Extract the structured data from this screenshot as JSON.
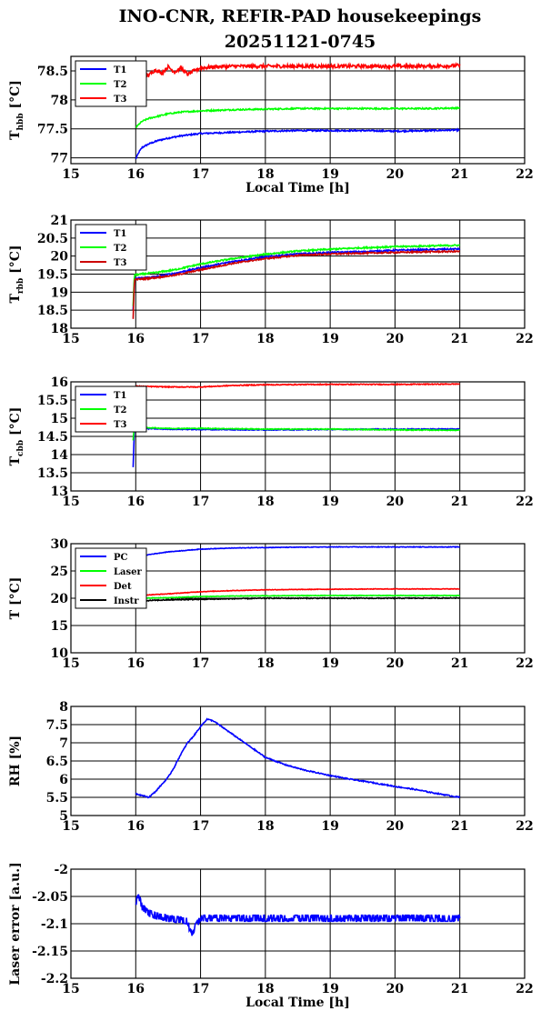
{
  "title": {
    "line1": "INO-CNR, REFIR-PAD housekeepings",
    "line2": "20251121-0745"
  },
  "chart_data": [
    {
      "type": "line",
      "title": "",
      "ylabel": {
        "main": "T",
        "sub": "hbb",
        "unit": " [°C]"
      },
      "xlabel": "Local Time [h]",
      "xlim": [
        15,
        22
      ],
      "ylim": [
        76.9,
        78.75
      ],
      "xticks": [
        "15",
        "16",
        "17",
        "18",
        "19",
        "20",
        "21",
        "22"
      ],
      "yticks": [
        {
          "v": 77,
          "t": "77"
        },
        {
          "v": 77.5,
          "t": "77.5"
        },
        {
          "v": 78,
          "t": "78"
        },
        {
          "v": 78.5,
          "t": "78.5"
        }
      ],
      "grid": true,
      "legend_position": "top-left",
      "series": [
        {
          "name": "T1",
          "color": "#0000ff",
          "x": [
            16.0,
            16.05,
            16.1,
            16.2,
            16.35,
            16.5,
            16.7,
            17.0,
            17.5,
            18.0,
            18.5,
            19.0,
            19.5,
            20.0,
            20.5,
            21.0
          ],
          "values": [
            76.98,
            77.1,
            77.18,
            77.24,
            77.3,
            77.34,
            77.38,
            77.42,
            77.44,
            77.46,
            77.47,
            77.47,
            77.47,
            77.46,
            77.47,
            77.48
          ]
        },
        {
          "name": "T2",
          "color": "#00ff00",
          "x": [
            16.0,
            16.05,
            16.1,
            16.2,
            16.35,
            16.5,
            16.7,
            17.0,
            17.5,
            18.0,
            18.5,
            19.0,
            19.5,
            20.0,
            20.5,
            21.0
          ],
          "values": [
            77.52,
            77.58,
            77.63,
            77.68,
            77.72,
            77.76,
            77.79,
            77.81,
            77.83,
            77.84,
            77.85,
            77.85,
            77.85,
            77.85,
            77.85,
            77.86
          ]
        },
        {
          "name": "T3",
          "color": "#ff0000",
          "x": [
            16.0,
            16.1,
            16.2,
            16.3,
            16.4,
            16.5,
            16.6,
            16.7,
            16.8,
            16.9,
            17.0,
            17.2,
            17.5,
            18.0,
            18.5,
            19.0,
            19.5,
            20.0,
            20.5,
            21.0
          ],
          "values": [
            78.45,
            78.5,
            78.42,
            78.52,
            78.46,
            78.57,
            78.48,
            78.55,
            78.44,
            78.5,
            78.55,
            78.57,
            78.58,
            78.58,
            78.58,
            78.58,
            78.58,
            78.58,
            78.58,
            78.59
          ]
        }
      ],
      "noise": [
        0.012,
        0.012,
        0.03
      ]
    },
    {
      "type": "line",
      "title": "",
      "ylabel": {
        "main": "T",
        "sub": "rbb",
        "unit": " [°C]"
      },
      "xlabel": "",
      "xlim": [
        15,
        22
      ],
      "ylim": [
        18,
        21
      ],
      "xticks": [
        "15",
        "16",
        "17",
        "18",
        "19",
        "20",
        "21",
        "22"
      ],
      "yticks": [
        {
          "v": 18,
          "t": "18"
        },
        {
          "v": 18.5,
          "t": "18.5"
        },
        {
          "v": 19,
          "t": "19"
        },
        {
          "v": 19.5,
          "t": "19.5"
        },
        {
          "v": 20,
          "t": "20"
        },
        {
          "v": 20.5,
          "t": "20.5"
        },
        {
          "v": 21,
          "t": "21"
        }
      ],
      "grid": true,
      "legend_position": "top-left",
      "series": [
        {
          "name": "T1",
          "color": "#0000ff",
          "x": [
            15.96,
            15.98,
            16.0,
            16.3,
            16.6,
            17.0,
            17.5,
            18.0,
            18.5,
            19.0,
            19.5,
            20.0,
            20.5,
            21.0
          ],
          "values": [
            18.5,
            19.4,
            19.38,
            19.43,
            19.52,
            19.68,
            19.85,
            19.98,
            20.06,
            20.1,
            20.12,
            20.16,
            20.18,
            20.2
          ]
        },
        {
          "name": "T2",
          "color": "#00ff00",
          "x": [
            15.96,
            15.98,
            16.0,
            16.3,
            16.6,
            17.0,
            17.5,
            18.0,
            18.5,
            19.0,
            19.5,
            20.0,
            20.5,
            21.0
          ],
          "values": [
            18.6,
            19.5,
            19.48,
            19.54,
            19.62,
            19.78,
            19.93,
            20.05,
            20.14,
            20.19,
            20.23,
            20.26,
            20.28,
            20.3
          ]
        },
        {
          "name": "T3",
          "color": "#cc0000",
          "x": [
            15.96,
            15.98,
            16.0,
            16.3,
            16.6,
            17.0,
            17.5,
            18.0,
            18.5,
            19.0,
            19.5,
            20.0,
            20.5,
            21.0
          ],
          "values": [
            18.25,
            19.35,
            19.35,
            19.4,
            19.47,
            19.62,
            19.8,
            19.93,
            20.02,
            20.06,
            20.08,
            20.1,
            20.12,
            20.13
          ]
        }
      ],
      "noise": [
        0.02,
        0.02,
        0.02
      ]
    },
    {
      "type": "line",
      "title": "",
      "ylabel": {
        "main": "T",
        "sub": "cbb",
        "unit": " [°C]"
      },
      "xlabel": "",
      "xlim": [
        15,
        22
      ],
      "ylim": [
        13,
        16
      ],
      "xticks": [
        "15",
        "16",
        "17",
        "18",
        "19",
        "20",
        "21",
        "22"
      ],
      "yticks": [
        {
          "v": 13,
          "t": "13"
        },
        {
          "v": 13.5,
          "t": "13.5"
        },
        {
          "v": 14,
          "t": "14"
        },
        {
          "v": 14.5,
          "t": "14.5"
        },
        {
          "v": 15,
          "t": "15"
        },
        {
          "v": 15.5,
          "t": "15.5"
        },
        {
          "v": 16,
          "t": "16"
        }
      ],
      "grid": true,
      "legend_position": "top-left",
      "series": [
        {
          "name": "T1",
          "color": "#0000ff",
          "x": [
            15.96,
            15.98,
            16.0,
            16.5,
            17.0,
            18.0,
            19.0,
            20.0,
            21.0
          ],
          "values": [
            13.65,
            14.75,
            14.72,
            14.7,
            14.69,
            14.68,
            14.69,
            14.7,
            14.7
          ]
        },
        {
          "name": "T2",
          "color": "#00ff00",
          "x": [
            15.96,
            15.98,
            16.0,
            16.5,
            17.0,
            18.0,
            19.0,
            20.0,
            21.0
          ],
          "values": [
            14.4,
            14.78,
            14.75,
            14.72,
            14.72,
            14.7,
            14.7,
            14.68,
            14.67
          ]
        },
        {
          "name": "T3",
          "color": "#ff0000",
          "x": [
            16.0,
            16.5,
            17.0,
            17.5,
            18.0,
            19.0,
            20.0,
            21.0
          ],
          "values": [
            15.88,
            15.86,
            15.86,
            15.9,
            15.92,
            15.93,
            15.93,
            15.94
          ]
        }
      ],
      "noise": [
        0.012,
        0.012,
        0.012
      ]
    },
    {
      "type": "line",
      "title": "",
      "ylabel": {
        "main": "T",
        "sub": "",
        "unit": " [°C]"
      },
      "xlabel": "",
      "xlim": [
        15,
        22
      ],
      "ylim": [
        10,
        30
      ],
      "xticks": [
        "15",
        "16",
        "17",
        "18",
        "19",
        "20",
        "21",
        "22"
      ],
      "yticks": [
        {
          "v": 10,
          "t": "10"
        },
        {
          "v": 15,
          "t": "15"
        },
        {
          "v": 20,
          "t": "20"
        },
        {
          "v": 25,
          "t": "25"
        },
        {
          "v": 30,
          "t": "30"
        }
      ],
      "grid": true,
      "legend_position": "top-left",
      "series": [
        {
          "name": "PC",
          "color": "#0000ff",
          "x": [
            16.0,
            16.2,
            16.5,
            16.8,
            17.0,
            17.5,
            18.0,
            18.5,
            19.0,
            20.0,
            21.0
          ],
          "values": [
            27.5,
            28.0,
            28.5,
            28.8,
            29.0,
            29.2,
            29.3,
            29.35,
            29.4,
            29.4,
            29.4
          ]
        },
        {
          "name": "Laser",
          "color": "#00ff00",
          "x": [
            16.0,
            16.5,
            17.0,
            17.5,
            18.0,
            19.0,
            20.0,
            21.0
          ],
          "values": [
            20.0,
            20.1,
            20.3,
            20.4,
            20.45,
            20.5,
            20.5,
            20.5
          ]
        },
        {
          "name": "Det",
          "color": "#ff0000",
          "x": [
            16.0,
            16.5,
            17.0,
            17.5,
            18.0,
            18.5,
            19.0,
            20.0,
            21.0
          ],
          "values": [
            20.5,
            20.8,
            21.2,
            21.4,
            21.55,
            21.6,
            21.65,
            21.7,
            21.7
          ]
        },
        {
          "name": "Instr",
          "color": "#000000",
          "x": [
            16.0,
            16.5,
            17.0,
            17.5,
            18.0,
            19.0,
            20.0,
            21.0
          ],
          "values": [
            19.5,
            19.7,
            19.8,
            19.9,
            20.0,
            20.0,
            20.0,
            20.05
          ]
        }
      ],
      "noise": [
        0.05,
        0.05,
        0.05,
        0.08
      ]
    },
    {
      "type": "line",
      "title": "",
      "ylabel": {
        "main": "RH [%]",
        "sub": "",
        "unit": ""
      },
      "xlabel": "",
      "xlim": [
        15,
        22
      ],
      "ylim": [
        5,
        8
      ],
      "xticks": [
        "15",
        "16",
        "17",
        "18",
        "19",
        "20",
        "21",
        "22"
      ],
      "yticks": [
        {
          "v": 5,
          "t": "5"
        },
        {
          "v": 5.5,
          "t": "5.5"
        },
        {
          "v": 6,
          "t": "6"
        },
        {
          "v": 6.5,
          "t": "6.5"
        },
        {
          "v": 7,
          "t": "7"
        },
        {
          "v": 7.5,
          "t": "7.5"
        },
        {
          "v": 8,
          "t": "8"
        }
      ],
      "grid": true,
      "legend_position": "",
      "series": [
        {
          "name": "",
          "color": "#0000ff",
          "x": [
            16.0,
            16.1,
            16.2,
            16.3,
            16.4,
            16.5,
            16.6,
            16.7,
            16.8,
            16.9,
            17.0,
            17.1,
            17.2,
            17.4,
            17.6,
            17.8,
            18.0,
            18.3,
            18.6,
            19.0,
            19.3,
            19.6,
            20.0,
            20.3,
            20.6,
            21.0
          ],
          "values": [
            5.6,
            5.55,
            5.5,
            5.65,
            5.85,
            6.05,
            6.35,
            6.7,
            7.0,
            7.2,
            7.45,
            7.65,
            7.6,
            7.35,
            7.1,
            6.85,
            6.6,
            6.4,
            6.25,
            6.1,
            6.0,
            5.92,
            5.8,
            5.72,
            5.62,
            5.5
          ]
        }
      ],
      "noise": [
        0.015
      ]
    },
    {
      "type": "line",
      "title": "",
      "ylabel": {
        "main": "Laser error [a.u.]",
        "sub": "",
        "unit": ""
      },
      "xlabel": "Local Time [h]",
      "xlim": [
        15,
        22
      ],
      "ylim": [
        -2.2,
        -2.0
      ],
      "xticks": [
        "15",
        "16",
        "17",
        "18",
        "19",
        "20",
        "21",
        "22"
      ],
      "yticks": [
        {
          "v": -2.2,
          "t": "-2.2"
        },
        {
          "v": -2.15,
          "t": "-2.15"
        },
        {
          "v": -2.1,
          "t": "-2.1"
        },
        {
          "v": -2.05,
          "t": "-2.05"
        },
        {
          "v": -2.0,
          "t": "-2"
        }
      ],
      "grid": true,
      "legend_position": "",
      "series": [
        {
          "name": "",
          "color": "#0000ff",
          "x": [
            16.0,
            16.05,
            16.1,
            16.2,
            16.3,
            16.5,
            16.8,
            16.85,
            17.0,
            18.0,
            19.0,
            20.0,
            21.0
          ],
          "values": [
            -2.06,
            -2.05,
            -2.07,
            -2.08,
            -2.085,
            -2.09,
            -2.095,
            -2.12,
            -2.09,
            -2.09,
            -2.09,
            -2.09,
            -2.09
          ]
        }
      ],
      "noise": [
        0.008
      ],
      "quantum": 0.0055
    }
  ]
}
